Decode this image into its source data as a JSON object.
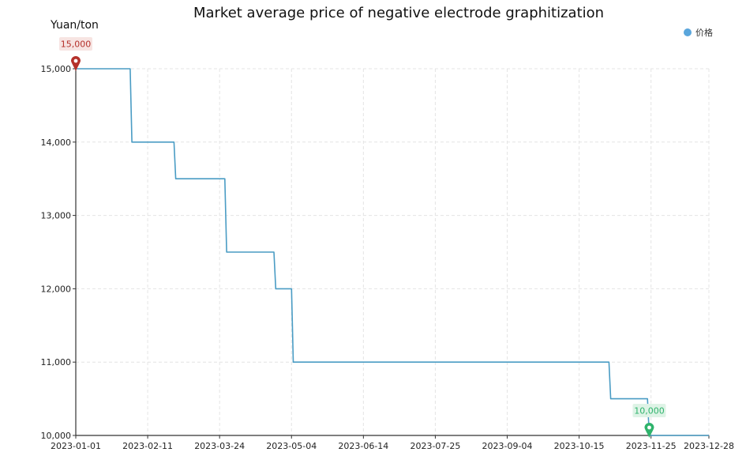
{
  "chart_data": {
    "type": "line",
    "title": "Market average price of negative electrode graphitization",
    "ylabel": "Yuan/ton",
    "xlabel": "",
    "ylim": [
      10000,
      15000
    ],
    "xlim": [
      "2023-01-01",
      "2023-12-28"
    ],
    "y_ticks": [
      "10,000",
      "11,000",
      "12,000",
      "13,000",
      "14,000",
      "15,000"
    ],
    "x_ticks": [
      "2023-01-01",
      "2023-02-11",
      "2023-03-24",
      "2023-05-04",
      "2023-06-14",
      "2023-07-25",
      "2023-09-04",
      "2023-10-15",
      "2023-11-25",
      "2023-12-28"
    ],
    "grid": true,
    "legend_position": "top-right",
    "series": [
      {
        "name": "价格",
        "color": "#4a9cc4",
        "points": [
          [
            "2023-01-01",
            15000
          ],
          [
            "2023-02-01",
            15000
          ],
          [
            "2023-02-02",
            14000
          ],
          [
            "2023-02-26",
            14000
          ],
          [
            "2023-02-27",
            13500
          ],
          [
            "2023-03-27",
            13500
          ],
          [
            "2023-03-28",
            12500
          ],
          [
            "2023-04-24",
            12500
          ],
          [
            "2023-04-25",
            12000
          ],
          [
            "2023-05-04",
            12000
          ],
          [
            "2023-05-05",
            11000
          ],
          [
            "2023-11-01",
            11000
          ],
          [
            "2023-11-02",
            10500
          ],
          [
            "2023-11-23",
            10500
          ],
          [
            "2023-11-24",
            10000
          ],
          [
            "2023-12-28",
            10000
          ]
        ]
      }
    ],
    "annotations": [
      {
        "label": "15,000",
        "date": "2023-01-01",
        "value": 15000,
        "kind": "max",
        "color": "#b5312b",
        "bg": "#f7e4e2"
      },
      {
        "label": "10,000",
        "date": "2023-11-24",
        "value": 10000,
        "kind": "min",
        "color": "#2fb36c",
        "bg": "#def3e6"
      }
    ]
  }
}
